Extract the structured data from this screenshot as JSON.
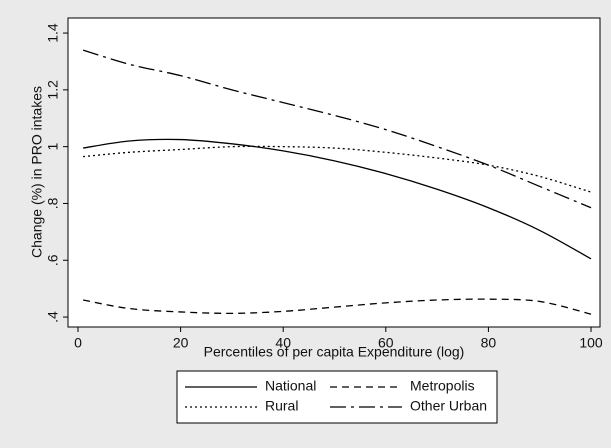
{
  "chart_data": {
    "type": "line",
    "x_label": "Percentiles of per capita Expenditure (log)",
    "y_label": "Change (%) in PRO intakes",
    "x": [
      1,
      10,
      20,
      30,
      40,
      50,
      60,
      70,
      80,
      90,
      100
    ],
    "series": [
      {
        "name": "National",
        "color": "#000000",
        "dash": "solid",
        "values": [
          0.995,
          1.02,
          1.025,
          1.01,
          0.985,
          0.95,
          0.905,
          0.85,
          0.785,
          0.705,
          0.605
        ]
      },
      {
        "name": "Metropolis",
        "color": "#000000",
        "dash": "dashed",
        "values": [
          0.46,
          0.43,
          0.418,
          0.413,
          0.42,
          0.435,
          0.45,
          0.46,
          0.463,
          0.455,
          0.41
        ]
      },
      {
        "name": "Rural",
        "color": "#000000",
        "dash": "dotted",
        "values": [
          0.965,
          0.98,
          0.99,
          1.0,
          1.0,
          0.995,
          0.98,
          0.96,
          0.935,
          0.895,
          0.84
        ]
      },
      {
        "name": "Other Urban",
        "color": "#000000",
        "dash": "longdashdot",
        "values": [
          1.34,
          1.29,
          1.25,
          1.2,
          1.155,
          1.11,
          1.06,
          1.0,
          0.935,
          0.86,
          0.785
        ]
      }
    ],
    "xlim": [
      -1.95,
      101.75
    ],
    "xticks": [
      0,
      20,
      40,
      60,
      80,
      100
    ],
    "ylim": [
      0.365,
      1.453
    ],
    "yticks": [
      {
        "value": 0.4,
        "label": ".4"
      },
      {
        "value": 0.6,
        "label": ".6"
      },
      {
        "value": 0.8,
        "label": ".8"
      },
      1,
      1.2,
      1.4
    ],
    "grid": false,
    "legend": "bottom"
  }
}
